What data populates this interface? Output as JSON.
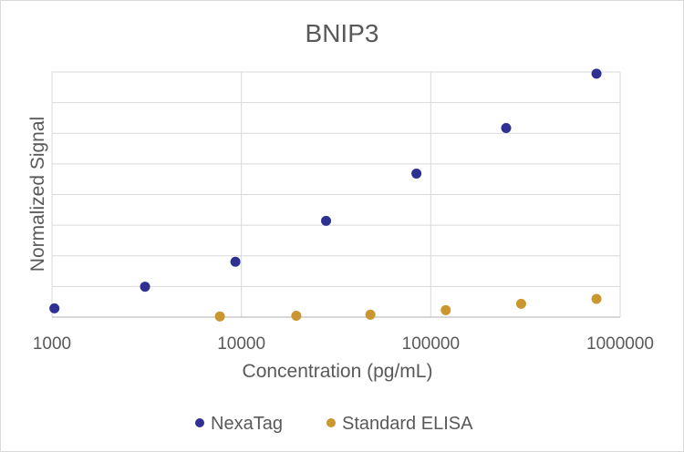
{
  "chart_data": {
    "type": "scatter",
    "title": "BNIP3",
    "xlabel": "Concentration (pg/mL)",
    "ylabel": "Normalized Signal",
    "x_scale": "log",
    "xlim": [
      1000,
      1000000
    ],
    "x_ticks": [
      "1000",
      "10000",
      "100000",
      "1000000"
    ],
    "ylim": [
      0,
      7
    ],
    "y_tick_labels_shown": false,
    "grid": true,
    "legend": "bottom",
    "series": [
      {
        "name": "NexaTag",
        "color": "#2e3192",
        "points": [
          {
            "x": 1030,
            "y": 0.25
          },
          {
            "x": 3100,
            "y": 0.87
          },
          {
            "x": 9300,
            "y": 1.58
          },
          {
            "x": 28000,
            "y": 2.75
          },
          {
            "x": 84000,
            "y": 4.1
          },
          {
            "x": 250000,
            "y": 5.4
          },
          {
            "x": 750000,
            "y": 6.95
          }
        ]
      },
      {
        "name": "Standard ELISA",
        "color": "#c9962f",
        "points": [
          {
            "x": 7700,
            "y": 0.02
          },
          {
            "x": 19500,
            "y": 0.04
          },
          {
            "x": 48000,
            "y": 0.07
          },
          {
            "x": 120000,
            "y": 0.2
          },
          {
            "x": 300000,
            "y": 0.38
          },
          {
            "x": 750000,
            "y": 0.52
          }
        ]
      }
    ]
  }
}
